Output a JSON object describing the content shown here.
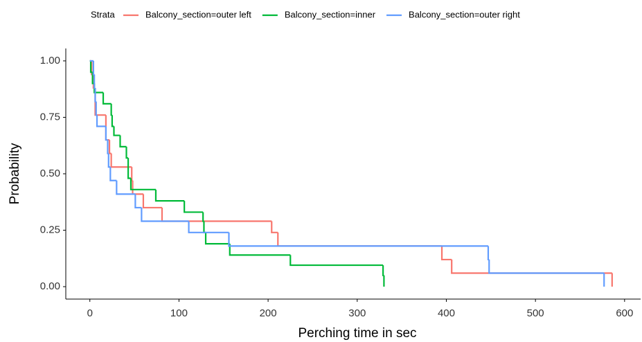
{
  "chart_data": {
    "type": "step",
    "xlabel": "Perching time in sec",
    "ylabel": "Probability",
    "legend_title": "Strata",
    "legend": "top",
    "xlim": [
      -27,
      618
    ],
    "ylim": [
      -0.055,
      1.055
    ],
    "xticks": [
      0,
      100,
      200,
      300,
      400,
      500,
      600
    ],
    "yticks": [
      {
        "value": 0,
        "label": "0.00"
      },
      0.25,
      {
        "value": 0.5,
        "label": "0.50"
      },
      0.75,
      {
        "value": 1,
        "label": "1.00"
      }
    ],
    "series": [
      {
        "name": "Balcony_section=outer left",
        "color": "#F8766D",
        "x": [
          0,
          2,
          4,
          6,
          18,
          22,
          24,
          47,
          48,
          60,
          81,
          204,
          211,
          395,
          406,
          586
        ],
        "values": [
          1.0,
          0.94,
          0.88,
          0.76,
          0.65,
          0.59,
          0.53,
          0.47,
          0.41,
          0.35,
          0.29,
          0.24,
          0.18,
          0.12,
          0.06,
          0
        ]
      },
      {
        "name": "Balcony_section=inner",
        "color": "#00BA38",
        "x": [
          0,
          1,
          3,
          5,
          15,
          24,
          25,
          27,
          34,
          41,
          43,
          46,
          74,
          106,
          127,
          128,
          130,
          157,
          225,
          329,
          330
        ],
        "values": [
          1.0,
          0.95,
          0.9,
          0.86,
          0.81,
          0.76,
          0.71,
          0.67,
          0.62,
          0.57,
          0.48,
          0.43,
          0.38,
          0.33,
          0.29,
          0.24,
          0.19,
          0.14,
          0.095,
          0.05,
          0
        ]
      },
      {
        "name": "Balcony_section=outer right",
        "color": "#619CFF",
        "x": [
          0,
          4,
          5,
          6,
          7,
          8,
          18,
          20,
          21,
          23,
          30,
          51,
          58,
          111,
          156,
          447,
          448,
          577
        ],
        "values": [
          1.0,
          0.94,
          0.88,
          0.82,
          0.76,
          0.71,
          0.65,
          0.59,
          0.53,
          0.47,
          0.41,
          0.35,
          0.29,
          0.24,
          0.18,
          0.12,
          0.06,
          0
        ]
      }
    ]
  }
}
